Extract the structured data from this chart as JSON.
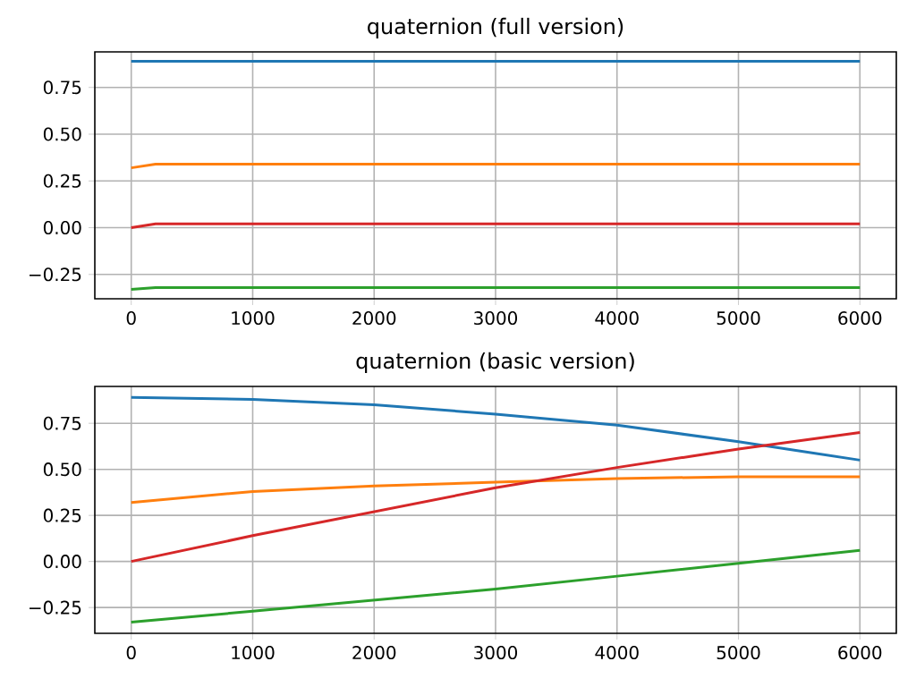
{
  "chart_data": [
    {
      "type": "line",
      "title": "quaternion (full version)",
      "grid": true,
      "xlim": [
        -300,
        6300
      ],
      "ylim": [
        -0.38,
        0.94
      ],
      "xticks": [
        0,
        1000,
        2000,
        3000,
        4000,
        5000,
        6000
      ],
      "yticks": [
        {
          "value": -0.25,
          "label": "−0.25"
        },
        {
          "value": 0,
          "label": "0.00"
        },
        {
          "value": 0.25,
          "label": "0.25"
        },
        {
          "value": 0.5,
          "label": "0.50"
        },
        {
          "value": 0.75,
          "label": "0.75"
        }
      ],
      "series": [
        {
          "color": "#1f77b4",
          "x": [
            0,
            200,
            6000
          ],
          "values": [
            0.89,
            0.89,
            0.89
          ]
        },
        {
          "color": "#ff7f0e",
          "x": [
            0,
            200,
            6000
          ],
          "values": [
            0.32,
            0.34,
            0.34
          ]
        },
        {
          "color": "#2ca02c",
          "x": [
            0,
            200,
            6000
          ],
          "values": [
            -0.33,
            -0.32,
            -0.32
          ]
        },
        {
          "color": "#d62728",
          "x": [
            0,
            200,
            6000
          ],
          "values": [
            0.0,
            0.02,
            0.02
          ]
        }
      ]
    },
    {
      "type": "line",
      "title": "quaternion (basic version)",
      "grid": true,
      "xlim": [
        -300,
        6300
      ],
      "ylim": [
        -0.39,
        0.95
      ],
      "xticks": [
        0,
        1000,
        2000,
        3000,
        4000,
        5000,
        6000
      ],
      "yticks": [
        {
          "value": -0.25,
          "label": "−0.25"
        },
        {
          "value": 0,
          "label": "0.00"
        },
        {
          "value": 0.25,
          "label": "0.25"
        },
        {
          "value": 0.5,
          "label": "0.50"
        },
        {
          "value": 0.75,
          "label": "0.75"
        }
      ],
      "series": [
        {
          "color": "#1f77b4",
          "x": [
            0,
            1000,
            2000,
            3000,
            4000,
            5000,
            6000
          ],
          "values": [
            0.89,
            0.88,
            0.85,
            0.8,
            0.74,
            0.65,
            0.55
          ]
        },
        {
          "color": "#ff7f0e",
          "x": [
            0,
            1000,
            2000,
            3000,
            4000,
            5000,
            6000
          ],
          "values": [
            0.32,
            0.38,
            0.41,
            0.43,
            0.45,
            0.46,
            0.46
          ]
        },
        {
          "color": "#2ca02c",
          "x": [
            0,
            1000,
            2000,
            3000,
            4000,
            5000,
            6000
          ],
          "values": [
            -0.33,
            -0.27,
            -0.21,
            -0.15,
            -0.08,
            -0.01,
            0.06
          ]
        },
        {
          "color": "#d62728",
          "x": [
            0,
            1000,
            2000,
            3000,
            4000,
            5000,
            6000
          ],
          "values": [
            0.0,
            0.14,
            0.27,
            0.4,
            0.51,
            0.61,
            0.7
          ]
        }
      ]
    }
  ]
}
